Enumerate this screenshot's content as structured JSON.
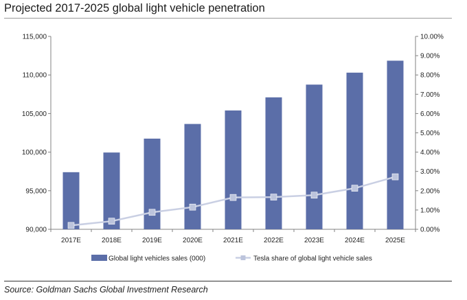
{
  "title": "Projected 2017-2025 global light vehicle penetration",
  "source": "Source: Goldman Sachs Global Investment Research",
  "colors": {
    "bar": "#5b6ea8",
    "line": "#c9cfe3",
    "marker": "#bcc4dc",
    "axis": "#808080"
  },
  "chart_data": {
    "type": "bar",
    "categories": [
      "2017E",
      "2018E",
      "2019E",
      "2020E",
      "2021E",
      "2022E",
      "2023E",
      "2024E",
      "2025E"
    ],
    "series": [
      {
        "name": "Global light vehicles sales (000)",
        "type": "bar",
        "axis": "left",
        "values": [
          97400,
          99950,
          101750,
          103650,
          105400,
          107100,
          108750,
          110300,
          111850
        ]
      },
      {
        "name": "Tesla share of global light vehicle sales",
        "type": "line",
        "axis": "right",
        "values": [
          0.2,
          0.42,
          0.88,
          1.15,
          1.65,
          1.67,
          1.77,
          2.13,
          2.72
        ]
      }
    ],
    "left_axis": {
      "min": 90000,
      "max": 115000,
      "ticks": [
        "90,000",
        "95,000",
        "100,000",
        "105,000",
        "110,000",
        "115,000"
      ]
    },
    "right_axis": {
      "min": 0,
      "max": 10,
      "ticks": [
        "0.00%",
        "1.00%",
        "2.00%",
        "3.00%",
        "4.00%",
        "5.00%",
        "6.00%",
        "7.00%",
        "8.00%",
        "9.00%",
        "10.00%"
      ]
    },
    "grid": false,
    "legend_position": "bottom"
  }
}
